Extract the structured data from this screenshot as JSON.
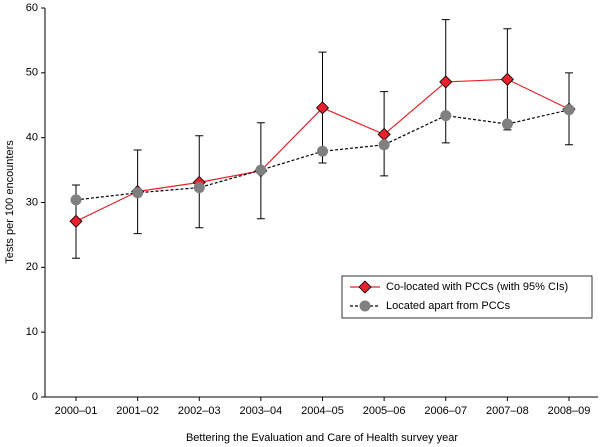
{
  "chart_data": {
    "type": "line",
    "x_label": "Bettering the Evaluation and Care of Health survey year",
    "y_label": "Tests per 100 encounters",
    "categories": [
      "2000–01",
      "2001–02",
      "2002–03",
      "2003–04",
      "2004–05",
      "2005–06",
      "2006–07",
      "2007–08",
      "2008–09"
    ],
    "series": [
      {
        "name": "Co-located with PCCs (with 95% CIs)",
        "color": "#e8222a",
        "marker": "diamond",
        "dash": false,
        "values": [
          27.1,
          31.7,
          33.1,
          34.9,
          44.6,
          40.5,
          48.6,
          49.0,
          44.4
        ],
        "ci_low": [
          21.4,
          25.2,
          26.1,
          27.5,
          36.1,
          34.1,
          39.2,
          41.2,
          38.9
        ],
        "ci_high": [
          32.7,
          38.1,
          40.3,
          42.3,
          53.2,
          47.1,
          58.2,
          56.8,
          50.0
        ]
      },
      {
        "name": "Located apart from PCCs",
        "color": "#808080",
        "marker": "circle",
        "dash": true,
        "values": [
          30.4,
          31.5,
          32.3,
          35.0,
          37.9,
          38.9,
          43.4,
          42.1,
          44.3
        ]
      }
    ],
    "ylim": [
      0,
      60
    ],
    "yticks": [
      0,
      10,
      20,
      30,
      40,
      50,
      60
    ],
    "legend": "lower right",
    "grid": false
  }
}
